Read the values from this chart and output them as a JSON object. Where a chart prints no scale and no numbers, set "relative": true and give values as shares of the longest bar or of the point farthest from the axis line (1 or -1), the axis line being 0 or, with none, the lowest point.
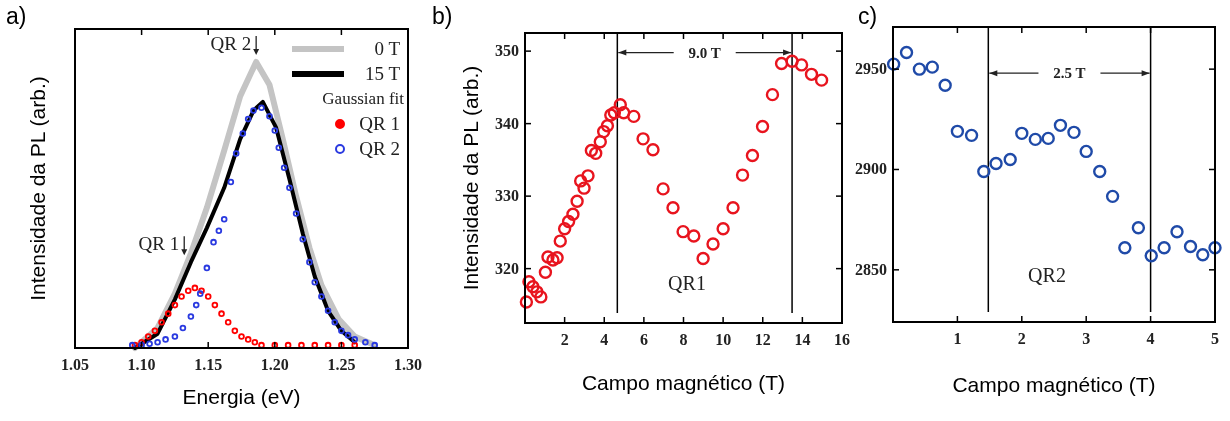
{
  "chart_data": [
    {
      "type": "line",
      "title": "a)",
      "xlabel": "Energia (eV)",
      "ylabel": "Intensidade da PL (arb.)",
      "relative": true,
      "xlim": [
        1.05,
        1.3
      ],
      "xticks": [
        1.05,
        {
          "value": 1.1,
          "label": "1.10"
        },
        1.15,
        {
          "value": 1.2,
          "label": "1.20"
        },
        1.25,
        {
          "value": 1.3,
          "label": "1.30"
        }
      ],
      "legend": "top right",
      "legend_title": "Gaussian fit",
      "annotations": [
        {
          "text": "QR 2",
          "x": 1.186,
          "y": 1.0
        },
        {
          "text": "QR 1",
          "x": 1.132,
          "y": 0.3
        }
      ],
      "series": [
        {
          "name": "0 T",
          "color": "#c4c4c4",
          "x": [
            1.095,
            1.112,
            1.125,
            1.137,
            1.149,
            1.162,
            1.174,
            1.186,
            1.196,
            1.206,
            1.216,
            1.226,
            1.235,
            1.248,
            1.26,
            1.275
          ],
          "values": [
            0,
            0.07,
            0.19,
            0.33,
            0.49,
            0.69,
            0.88,
            1.0,
            0.92,
            0.73,
            0.53,
            0.35,
            0.22,
            0.1,
            0.04,
            0.01
          ]
        },
        {
          "name": "15 T",
          "color": "#000000",
          "x": [
            1.095,
            1.112,
            1.125,
            1.137,
            1.149,
            1.162,
            1.174,
            1.184,
            1.191,
            1.201,
            1.211,
            1.221,
            1.23,
            1.24,
            1.25,
            1.26
          ],
          "values": [
            0,
            0.05,
            0.17,
            0.3,
            0.42,
            0.56,
            0.73,
            0.83,
            0.86,
            0.77,
            0.59,
            0.4,
            0.25,
            0.13,
            0.06,
            0.02
          ]
        },
        {
          "name": "QR 1",
          "type": "scatter",
          "marker": "circle",
          "color": "#ff0000",
          "x": [
            1.095,
            1.1,
            1.105,
            1.11,
            1.115,
            1.12,
            1.125,
            1.13,
            1.135,
            1.14,
            1.145,
            1.15,
            1.155,
            1.16,
            1.165,
            1.17,
            1.175,
            1.18,
            1.185,
            1.19,
            1.2,
            1.21,
            1.22,
            1.23,
            1.24,
            1.25,
            1.26
          ],
          "values": [
            0.01,
            0.02,
            0.04,
            0.06,
            0.09,
            0.12,
            0.15,
            0.18,
            0.2,
            0.21,
            0.2,
            0.18,
            0.15,
            0.12,
            0.09,
            0.06,
            0.04,
            0.03,
            0.02,
            0.01,
            0.01,
            0.01,
            0.01,
            0.01,
            0.01,
            0.01,
            0.01
          ]
        },
        {
          "name": "QR 2",
          "type": "scatter",
          "marker": "circle",
          "color": "#2a3ae0",
          "x": [
            1.093,
            1.1,
            1.106,
            1.112,
            1.118,
            1.125,
            1.131,
            1.137,
            1.141,
            1.144,
            1.149,
            1.154,
            1.158,
            1.162,
            1.167,
            1.171,
            1.176,
            1.18,
            1.184,
            1.19,
            1.196,
            1.2,
            1.203,
            1.207,
            1.211,
            1.216,
            1.221,
            1.226,
            1.23,
            1.235,
            1.24,
            1.245,
            1.25,
            1.255,
            1.26,
            1.268,
            1.275
          ],
          "values": [
            0.01,
            0.01,
            0.015,
            0.02,
            0.03,
            0.04,
            0.07,
            0.11,
            0.15,
            0.19,
            0.28,
            0.37,
            0.41,
            0.45,
            0.58,
            0.68,
            0.75,
            0.8,
            0.83,
            0.84,
            0.81,
            0.76,
            0.7,
            0.63,
            0.56,
            0.47,
            0.38,
            0.3,
            0.23,
            0.18,
            0.13,
            0.09,
            0.06,
            0.045,
            0.03,
            0.02,
            0.01
          ]
        }
      ]
    },
    {
      "type": "scatter",
      "title": "b)",
      "xlabel": "Campo magnético (T)",
      "ylabel": "Intensidade da PL (arb.)",
      "xlim": [
        0,
        16
      ],
      "xticks": [
        2,
        4,
        6,
        8,
        10,
        12,
        14,
        16
      ],
      "ylim": [
        312.5,
        352.5
      ],
      "yticks": [
        320,
        330,
        340,
        350
      ],
      "marker": "circle",
      "annotations": [
        {
          "text": "9.0 T",
          "x": 13.48,
          "y": 349.8
        },
        "QR1"
      ],
      "ref_lines": [
        {
          "axis": "x",
          "value": 4.66,
          "color": "#000000"
        },
        {
          "axis": "x",
          "value": 13.48,
          "color": "#000000"
        }
      ],
      "series": [
        {
          "color": "#e8141e",
          "x": [
            0.07,
            0.2,
            0.4,
            0.6,
            0.8,
            1.03,
            1.16,
            1.41,
            1.62,
            1.78,
            2.0,
            2.2,
            2.42,
            2.63,
            2.81,
            2.98,
            3.18,
            3.35,
            3.57,
            3.8,
            3.97,
            4.16,
            4.33,
            4.51,
            4.81,
            4.98,
            5.49,
            5.96,
            6.46,
            6.97,
            7.47,
            7.98,
            8.52,
            8.99,
            9.49,
            10.0,
            10.5,
            10.98,
            11.48,
            11.99,
            12.49,
            12.95,
            13.48,
            13.96,
            14.46,
            14.97
          ],
          "values": [
            315.4,
            318.2,
            317.5,
            316.8,
            316.1,
            319.5,
            321.6,
            321.2,
            321.5,
            323.8,
            325.5,
            326.5,
            327.5,
            329.3,
            332.1,
            331.1,
            332.8,
            336.3,
            335.9,
            337.5,
            338.9,
            339.7,
            341.2,
            341.5,
            342.6,
            341.5,
            341.0,
            337.9,
            336.4,
            331.0,
            328.4,
            325.1,
            324.5,
            321.4,
            323.4,
            325.5,
            328.4,
            332.9,
            335.6,
            339.6,
            344.0,
            348.3,
            348.6,
            348.1,
            346.8,
            346.0
          ]
        }
      ]
    },
    {
      "type": "scatter",
      "title": "c)",
      "xlabel": "Campo magnético (T)",
      "xlim": [
        0,
        5
      ],
      "xticks": [
        1,
        2,
        3,
        4,
        5
      ],
      "ylim": [
        2824,
        2971
      ],
      "yticks": [
        2850,
        2900,
        2950
      ],
      "marker": "circle",
      "annotations": [
        {
          "text": "2.5 T",
          "x": 4.0,
          "y": 2948
        },
        "QR2"
      ],
      "ref_lines": [
        {
          "axis": "x",
          "value": 1.48,
          "color": "#000000"
        },
        {
          "axis": "x",
          "value": 4.0,
          "color": "#000000"
        }
      ],
      "series": [
        {
          "color": "#1f4aa8",
          "x": [
            0.01,
            0.21,
            0.41,
            0.61,
            0.81,
            1.0,
            1.22,
            1.41,
            1.6,
            1.82,
            2.0,
            2.21,
            2.41,
            2.6,
            2.81,
            3.0,
            3.21,
            3.41,
            3.6,
            3.81,
            4.01,
            4.21,
            4.41,
            4.62,
            4.81,
            5.0
          ],
          "values": [
            2952.5,
            2958.3,
            2950,
            2951,
            2942,
            2919,
            2917,
            2899,
            2903,
            2905,
            2918,
            2915,
            2915.5,
            2922,
            2918.5,
            2909,
            2899,
            2886.6,
            2861,
            2871,
            2857,
            2861,
            2869,
            2861.6,
            2857.5,
            2861
          ]
        }
      ]
    }
  ]
}
